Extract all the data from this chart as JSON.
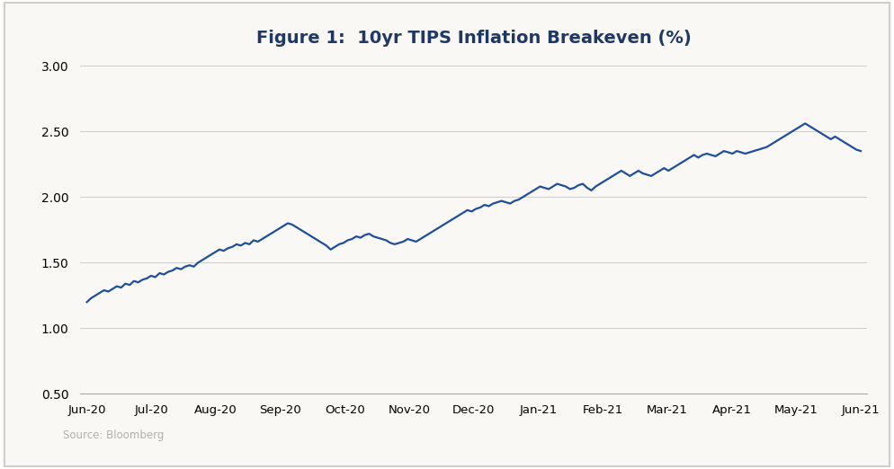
{
  "title": "Figure 1:  10yr TIPS Inflation Breakeven (%)",
  "source_text": "Source: Bloomberg",
  "line_color": "#1f4e9c",
  "background_color": "#f9f8f4",
  "plot_bg_color": "#f9f8f4",
  "grid_color": "#cccccc",
  "title_color": "#1f3864",
  "source_color": "#b0b0b0",
  "border_color": "#d0cec8",
  "ylim": [
    0.5,
    3.0
  ],
  "yticks": [
    0.5,
    1.0,
    1.5,
    2.0,
    2.5,
    3.0
  ],
  "ytick_labels": [
    "0.50",
    "1.00",
    "1.50",
    "2.00",
    "2.50",
    "3.00"
  ],
  "x_labels": [
    "Jun-20",
    "Jul-20",
    "Aug-20",
    "Sep-20",
    "Oct-20",
    "Nov-20",
    "Dec-20",
    "Jan-21",
    "Feb-21",
    "Mar-21",
    "Apr-21",
    "May-21",
    "Jun-21"
  ],
  "values": [
    1.2,
    1.23,
    1.25,
    1.27,
    1.29,
    1.28,
    1.3,
    1.32,
    1.31,
    1.34,
    1.33,
    1.36,
    1.35,
    1.37,
    1.38,
    1.4,
    1.39,
    1.42,
    1.41,
    1.43,
    1.44,
    1.46,
    1.45,
    1.47,
    1.48,
    1.47,
    1.5,
    1.52,
    1.54,
    1.56,
    1.58,
    1.6,
    1.59,
    1.61,
    1.62,
    1.64,
    1.63,
    1.65,
    1.64,
    1.67,
    1.66,
    1.68,
    1.7,
    1.72,
    1.74,
    1.76,
    1.78,
    1.8,
    1.79,
    1.77,
    1.75,
    1.73,
    1.71,
    1.69,
    1.67,
    1.65,
    1.63,
    1.6,
    1.62,
    1.64,
    1.65,
    1.67,
    1.68,
    1.7,
    1.69,
    1.71,
    1.72,
    1.7,
    1.69,
    1.68,
    1.67,
    1.65,
    1.64,
    1.65,
    1.66,
    1.68,
    1.67,
    1.66,
    1.68,
    1.7,
    1.72,
    1.74,
    1.76,
    1.78,
    1.8,
    1.82,
    1.84,
    1.86,
    1.88,
    1.9,
    1.89,
    1.91,
    1.92,
    1.94,
    1.93,
    1.95,
    1.96,
    1.97,
    1.96,
    1.95,
    1.97,
    1.98,
    2.0,
    2.02,
    2.04,
    2.06,
    2.08,
    2.07,
    2.06,
    2.08,
    2.1,
    2.09,
    2.08,
    2.06,
    2.07,
    2.09,
    2.1,
    2.07,
    2.05,
    2.08,
    2.1,
    2.12,
    2.14,
    2.16,
    2.18,
    2.2,
    2.18,
    2.16,
    2.18,
    2.2,
    2.18,
    2.17,
    2.16,
    2.18,
    2.2,
    2.22,
    2.2,
    2.22,
    2.24,
    2.26,
    2.28,
    2.3,
    2.32,
    2.3,
    2.32,
    2.33,
    2.32,
    2.31,
    2.33,
    2.35,
    2.34,
    2.33,
    2.35,
    2.34,
    2.33,
    2.34,
    2.35,
    2.36,
    2.37,
    2.38,
    2.4,
    2.42,
    2.44,
    2.46,
    2.48,
    2.5,
    2.52,
    2.54,
    2.56,
    2.54,
    2.52,
    2.5,
    2.48,
    2.46,
    2.44,
    2.46,
    2.44,
    2.42,
    2.4,
    2.38,
    2.36,
    2.35
  ],
  "line_width": 1.6
}
